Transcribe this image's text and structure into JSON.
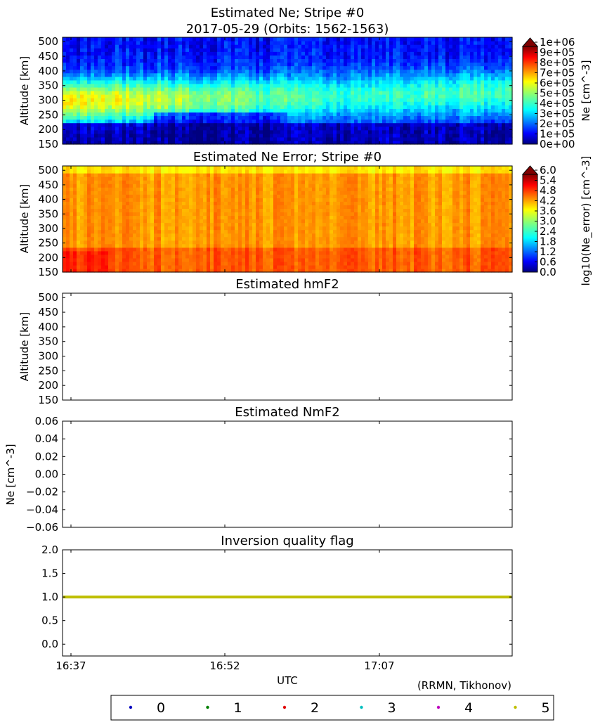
{
  "figure": {
    "title_line1": "Estimated Ne; Stripe #0",
    "title_line2": "2017-05-29 (Orbits: 1562-1563)",
    "credit": "(RRMN, Tikhonov)",
    "xlabel": "UTC",
    "x_ticks": [
      "16:37",
      "16:52",
      "17:07"
    ]
  },
  "colors": {
    "jet": [
      "#00007f",
      "#0000ff",
      "#007fff",
      "#00ffff",
      "#7fff7f",
      "#ffff00",
      "#ff7f00",
      "#ff0000",
      "#7f0000"
    ],
    "series": [
      "#0000bf",
      "#007f00",
      "#e00000",
      "#00bfbf",
      "#bf00bf",
      "#bfbf00"
    ]
  },
  "chart_data": [
    {
      "type": "heatmap",
      "title": "Estimated Ne; Stripe #0",
      "ylabel": "Altitude [km]",
      "ylim": [
        150,
        515
      ],
      "y_ticks": [
        "150",
        "200",
        "250",
        "300",
        "350",
        "400",
        "450",
        "500"
      ],
      "colorbar_label": "Ne [cm^-3]",
      "colorbar_ticks": [
        "0e+00",
        "1e+05",
        "2e+05",
        "3e+05",
        "4e+05",
        "5e+05",
        "6e+05",
        "7e+05",
        "8e+05",
        "9e+05",
        "1e+06"
      ],
      "clim": [
        0,
        1000000
      ],
      "grid": false
    },
    {
      "type": "heatmap",
      "title": "Estimated Ne Error; Stripe #0",
      "ylabel": "Altitude [km]",
      "ylim": [
        150,
        515
      ],
      "y_ticks": [
        "150",
        "200",
        "250",
        "300",
        "350",
        "400",
        "450",
        "500"
      ],
      "colorbar_label": "log10(Ne_error) [cm^-3]",
      "colorbar_ticks": [
        "0.0",
        "0.6",
        "1.2",
        "1.8",
        "2.4",
        "3.0",
        "3.6",
        "4.2",
        "4.8",
        "5.4",
        "6.0"
      ],
      "clim": [
        0.0,
        6.0
      ],
      "grid": false
    },
    {
      "type": "line",
      "title": "Estimated hmF2",
      "ylabel": "Altitude [km]",
      "ylim": [
        150,
        515
      ],
      "y_ticks": [
        "150",
        "200",
        "250",
        "300",
        "350",
        "400",
        "450",
        "500"
      ],
      "series": []
    },
    {
      "type": "line",
      "title": "Estimated NmF2",
      "ylabel": "Ne [cm^-3]",
      "ylim": [
        -0.06,
        0.06
      ],
      "y_ticks": [
        "−0.06",
        "−0.04",
        "−0.02",
        "0.00",
        "0.02",
        "0.04",
        "0.06"
      ],
      "series": []
    },
    {
      "type": "scatter",
      "title": "Inversion quality flag",
      "ylabel": "",
      "ylim": [
        -0.25,
        2.0
      ],
      "y_ticks": [
        "0.0",
        "0.5",
        "1.0",
        "1.5",
        "2.0"
      ],
      "series": [
        {
          "name": "0",
          "values": []
        },
        {
          "name": "1",
          "values": []
        },
        {
          "name": "2",
          "values": []
        },
        {
          "name": "3",
          "values": []
        },
        {
          "name": "4",
          "values": []
        },
        {
          "name": "5",
          "values": [
            1.0
          ]
        }
      ],
      "legend": {
        "placement": "bottom",
        "entries": [
          "0",
          "1",
          "2",
          "3",
          "4",
          "5"
        ]
      }
    }
  ]
}
